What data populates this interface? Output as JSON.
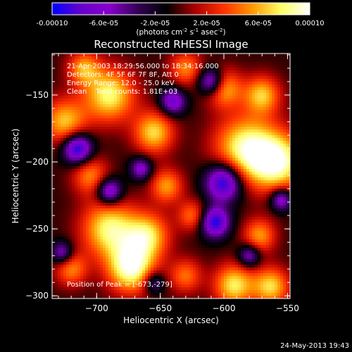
{
  "chart_data": {
    "type": "heatmap",
    "title": "Reconstructed RHESSI Image",
    "colorbar": {
      "ticks": [
        "-0.00010",
        "-6.0e-05",
        "-2.0e-05",
        "2.0e-05",
        "6.0e-05",
        "0.00010"
      ],
      "range": [
        -0.0001,
        0.0001
      ],
      "unit_prefix": "(photons cm",
      "unit_exp1": "-2",
      "unit_mid": " s",
      "unit_exp2": "-1",
      "unit_mid2": " asec",
      "unit_exp3": "-2",
      "unit_suffix": ")",
      "colors": [
        "#0000ff",
        "#6600cc",
        "#8800cc",
        "#330055",
        "#000000",
        "#aa0000",
        "#ff3300",
        "#ff9900",
        "#ffff66",
        "#ffffff"
      ]
    },
    "xlabel": "Heliocentric X (arcsec)",
    "ylabel": "Heliocentric Y (arcsec)",
    "xlim": [
      -735,
      -548
    ],
    "ylim": [
      -302,
      -119
    ],
    "xticks": [
      -700,
      -650,
      -600,
      -550
    ],
    "yticks": [
      -150,
      -200,
      -250,
      -300
    ],
    "xtick_labels": [
      "−700",
      "−650",
      "−600",
      "−550"
    ],
    "ytick_labels": [
      "−150",
      "−200",
      "−250",
      "−300"
    ],
    "annotations": [
      "21-Apr-2003 18:29:56.000 to 18:34:16.000",
      "Detectors: 4F 5F 6F 7F 8F, Att 0",
      "Energy Range: 12.0 - 25.0 keV",
      "Clean    Total counts: 1.81E+03"
    ],
    "peak_label": "Position of Peak = [-673,-279]",
    "peak": [
      -673,
      -279
    ],
    "blobs": [
      {
        "x": -673,
        "y": -279,
        "r": 13,
        "v": 1.0
      },
      {
        "x": -558,
        "y": -200,
        "r": 15,
        "v": 0.95
      },
      {
        "x": -583,
        "y": -190,
        "r": 17,
        "v": 0.9
      },
      {
        "x": -690,
        "y": -150,
        "r": 14,
        "v": 0.85
      },
      {
        "x": -655,
        "y": -178,
        "r": 11,
        "v": 0.75
      },
      {
        "x": -690,
        "y": -250,
        "r": 15,
        "v": 0.85
      },
      {
        "x": -660,
        "y": -255,
        "r": 12,
        "v": 0.75
      },
      {
        "x": -725,
        "y": -170,
        "r": 12,
        "v": 0.7
      },
      {
        "x": -705,
        "y": -210,
        "r": 10,
        "v": 0.55
      },
      {
        "x": -645,
        "y": -218,
        "r": 9,
        "v": 0.6
      },
      {
        "x": -625,
        "y": -240,
        "r": 8,
        "v": 0.5
      },
      {
        "x": -600,
        "y": -145,
        "r": 10,
        "v": 0.65
      },
      {
        "x": -570,
        "y": -150,
        "r": 10,
        "v": 0.7
      },
      {
        "x": -630,
        "y": -130,
        "r": 9,
        "v": 0.55
      },
      {
        "x": -572,
        "y": -255,
        "r": 9,
        "v": 0.6
      },
      {
        "x": -592,
        "y": -292,
        "r": 11,
        "v": 0.8
      },
      {
        "x": -563,
        "y": -293,
        "r": 10,
        "v": 0.75
      },
      {
        "x": -720,
        "y": -280,
        "r": 9,
        "v": 0.55
      },
      {
        "x": -630,
        "y": -285,
        "r": 9,
        "v": 0.5
      },
      {
        "x": -710,
        "y": -130,
        "r": 9,
        "v": 0.6
      },
      {
        "x": -715,
        "y": -190,
        "r": -8,
        "v": 1.0
      },
      {
        "x": -600,
        "y": -215,
        "r": -10,
        "v": 1.0
      },
      {
        "x": -607,
        "y": -245,
        "r": -8,
        "v": 0.9
      },
      {
        "x": -610,
        "y": -140,
        "r": -7,
        "v": 0.8
      },
      {
        "x": -640,
        "y": -155,
        "r": -7,
        "v": 0.7
      },
      {
        "x": -690,
        "y": -222,
        "r": -7,
        "v": 0.8
      },
      {
        "x": -665,
        "y": -205,
        "r": -6,
        "v": 0.6
      },
      {
        "x": -727,
        "y": -268,
        "r": -6,
        "v": 0.6
      },
      {
        "x": -555,
        "y": -228,
        "r": -6,
        "v": 0.7
      },
      {
        "x": -580,
        "y": -270,
        "r": -6,
        "v": 0.6
      },
      {
        "x": -655,
        "y": -290,
        "r": -6,
        "v": 0.5
      }
    ]
  },
  "footer": {
    "timestamp": "24-May-2013 19:43"
  }
}
